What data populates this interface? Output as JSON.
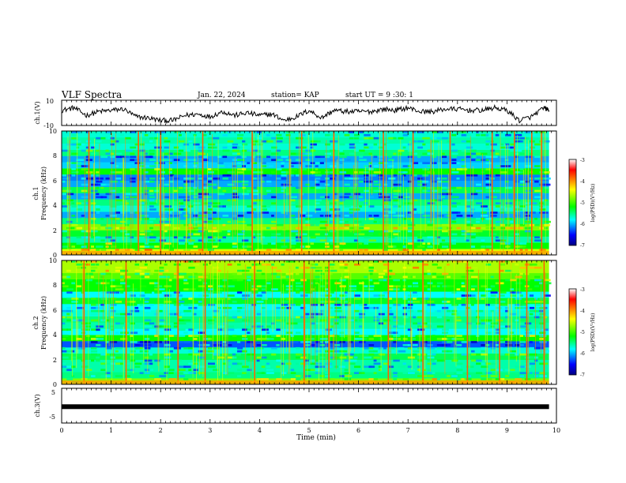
{
  "header": {
    "title": "VLF Spectra",
    "date": "Jan. 22, 2024",
    "station": "station= KAP",
    "start": "start UT =  9 :30: 1"
  },
  "axes": {
    "x_label": "Time (min)",
    "x_ticks": [
      "0",
      "1",
      "2",
      "3",
      "4",
      "5",
      "6",
      "7",
      "8",
      "9",
      "10"
    ],
    "ch1v_label": "ch.1(V)",
    "ch1v_ticks": [
      "10",
      "-10"
    ],
    "spec1_label": "ch.1",
    "spec2_label": "ch.2",
    "freq_label": "Frequency (kHz)",
    "freq_ticks": [
      "10",
      "8",
      "6",
      "4",
      "2",
      "0"
    ],
    "ch3v_label": "ch.3(V)",
    "ch3v_ticks": [
      "5",
      "-5"
    ]
  },
  "colorbar": {
    "label": "log(PSD)(V²/Hz)",
    "ticks": [
      "-3",
      "-4",
      "-5",
      "-6",
      "-7"
    ],
    "colors": [
      "#ffffff",
      "#ff0000",
      "#ffff00",
      "#00ff00",
      "#00ffff",
      "#0000ff",
      "#000080"
    ]
  },
  "chart_data": [
    {
      "type": "line",
      "name": "ch.1 waveform",
      "ylabel": "ch.1(V)",
      "xlim": [
        0,
        10
      ],
      "ylim": [
        -10,
        10
      ],
      "x": [
        0,
        0.25,
        0.5,
        0.75,
        1.0,
        1.25,
        1.5,
        1.75,
        2.0,
        2.25,
        2.5,
        2.75,
        3.0,
        3.25,
        3.5,
        3.75,
        4.0,
        4.25,
        4.5,
        4.75,
        5.0,
        5.25,
        5.5,
        5.75,
        6.0,
        6.25,
        6.5,
        6.75,
        7.0,
        7.25,
        7.5,
        7.75,
        8.0,
        8.25,
        8.5,
        8.75,
        9.0,
        9.25,
        9.5,
        9.75,
        9.85
      ],
      "y": [
        2,
        4,
        -2,
        1,
        2,
        3,
        -3,
        -4,
        -6,
        -6,
        -2,
        -1,
        -3,
        1,
        -2,
        0,
        -2,
        -1,
        -6,
        -3,
        2,
        -4,
        2,
        1,
        1,
        1,
        3,
        2,
        4,
        1,
        1,
        3,
        3,
        2,
        2,
        4,
        2,
        -6,
        -3,
        4,
        2
      ]
    },
    {
      "type": "heatmap",
      "name": "ch.1",
      "xlabel": "Time (min)",
      "ylabel": "Frequency (kHz)",
      "xlim": [
        0,
        10
      ],
      "ylim": [
        0,
        10
      ],
      "zlabel": "log(PSD)(V²/Hz)",
      "zlim": [
        -7,
        -3
      ],
      "band_khz": [
        0,
        0.5,
        1,
        1.5,
        2,
        2.5,
        3,
        3.5,
        4,
        4.5,
        5,
        5.5,
        6,
        6.5,
        7,
        7.5,
        8,
        8.5,
        9,
        9.5
      ],
      "band_level": [
        -4.5,
        -5.0,
        -5.4,
        -5.1,
        -4.7,
        -5.3,
        -5.8,
        -5.5,
        -5.3,
        -5.8,
        -5.2,
        -5.8,
        -5.9,
        -5.0,
        -5.7,
        -5.8,
        -5.3,
        -5.5,
        -5.4,
        -5.5
      ],
      "impulse_min": [
        0.55,
        1.55,
        2.0,
        2.85,
        3.85,
        4.85,
        5.5,
        6.5,
        7.1,
        7.85,
        8.7,
        9.15,
        9.5,
        9.7
      ],
      "end_min": 9.85
    },
    {
      "type": "heatmap",
      "name": "ch.2",
      "xlabel": "Time (min)",
      "ylabel": "Frequency (kHz)",
      "xlim": [
        0,
        10
      ],
      "ylim": [
        0,
        10
      ],
      "zlabel": "log(PSD)(V²/Hz)",
      "zlim": [
        -7,
        -3
      ],
      "band_khz": [
        0,
        0.5,
        1,
        1.5,
        2,
        2.5,
        3,
        3.5,
        4,
        4.5,
        5,
        5.5,
        6,
        6.5,
        7,
        7.5,
        8,
        8.5,
        9,
        9.5
      ],
      "band_level": [
        -4.7,
        -5.3,
        -5.4,
        -5.4,
        -5.2,
        -5.5,
        -6.0,
        -5.0,
        -5.6,
        -5.4,
        -5.3,
        -5.5,
        -5.6,
        -5.1,
        -5.6,
        -5.0,
        -5.0,
        -4.8,
        -4.6,
        -4.6
      ],
      "impulse_min": [
        0.45,
        1.3,
        2.35,
        2.9,
        3.9,
        4.9,
        5.4,
        6.6,
        7.3,
        8.2,
        8.85,
        9.4,
        9.75
      ],
      "end_min": 9.85
    },
    {
      "type": "line",
      "name": "ch.3 waveform",
      "ylabel": "ch.3(V)",
      "xlim": [
        0,
        10
      ],
      "ylim": [
        -5,
        5
      ],
      "x": [
        0,
        9.85
      ],
      "y": [
        -0.3,
        -0.3
      ]
    }
  ]
}
